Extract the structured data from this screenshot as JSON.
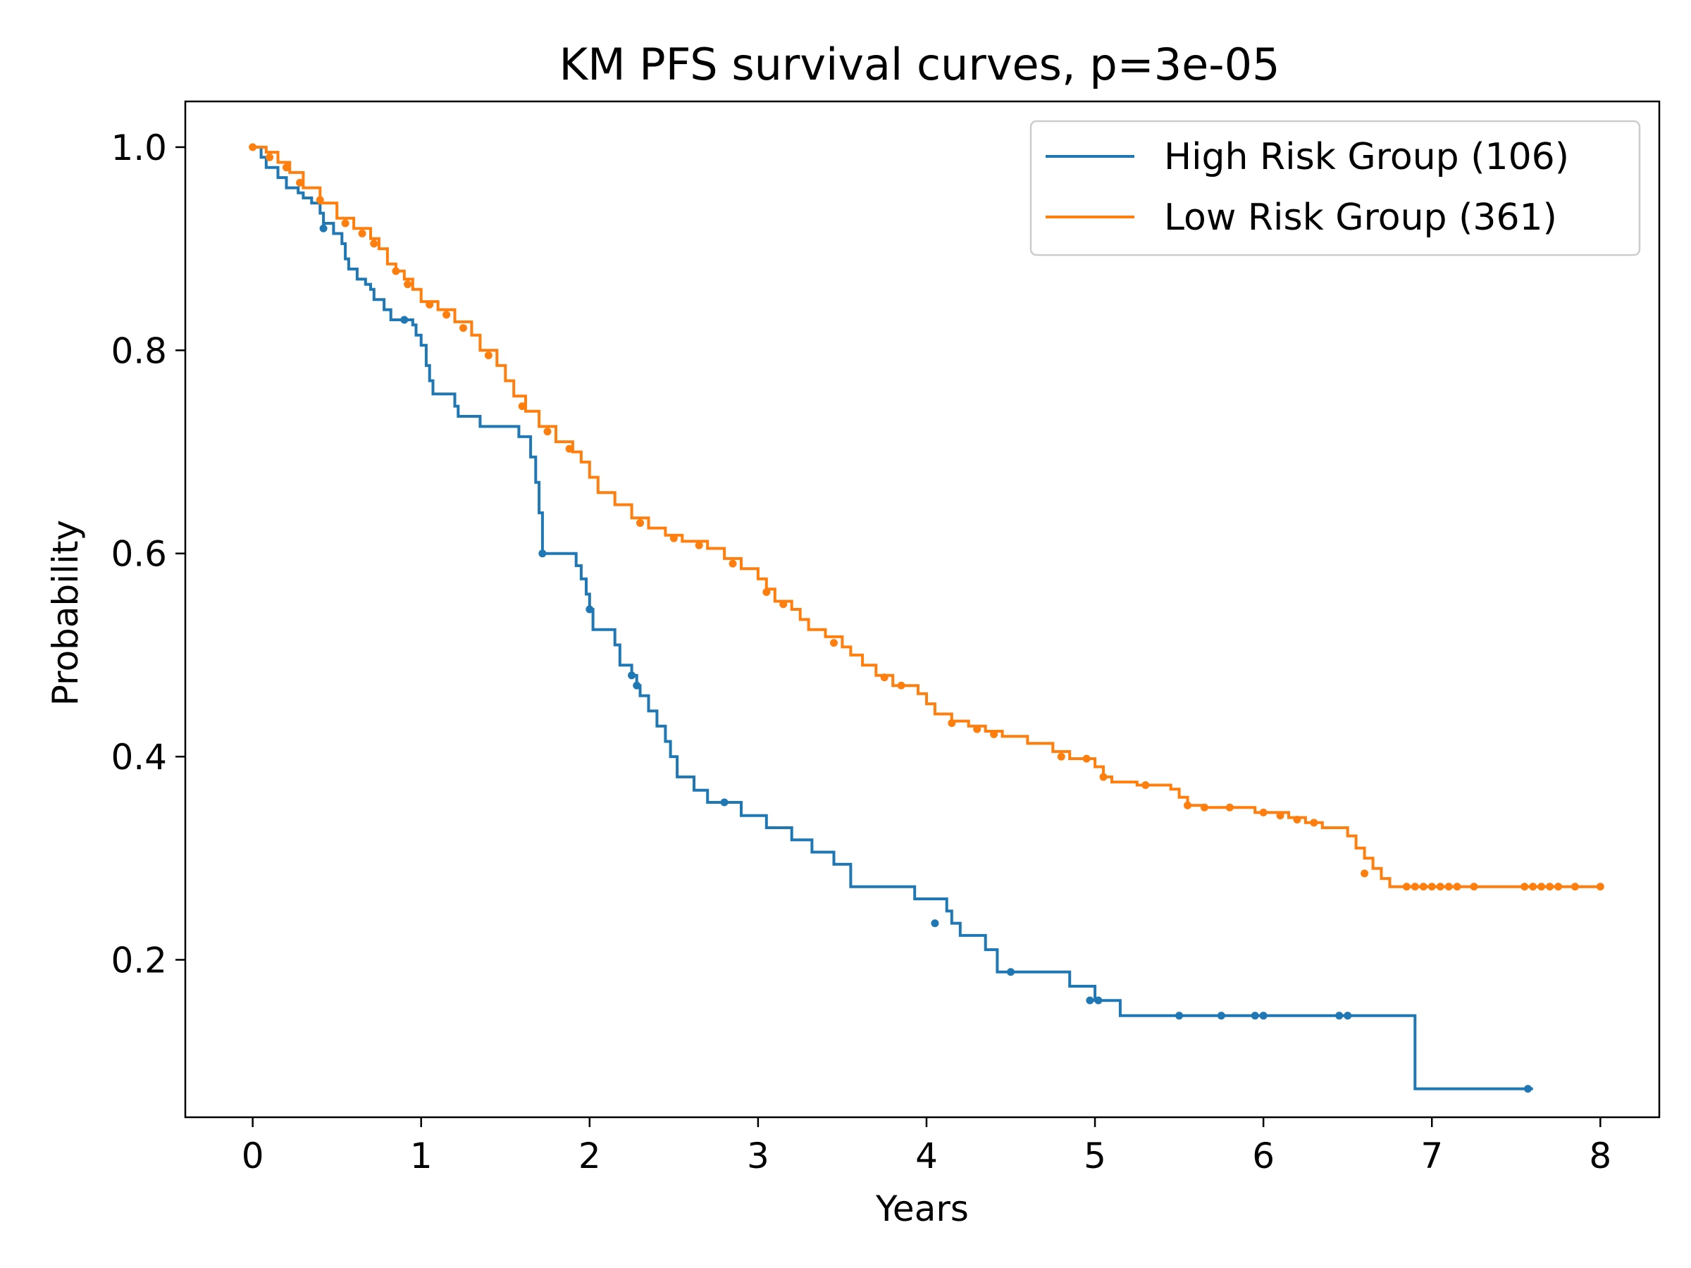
{
  "chart_data": {
    "type": "line",
    "title": "KM PFS survival curves, p=3e-05",
    "xlabel": "Years",
    "ylabel": "Probability",
    "xlim": [
      -0.4,
      8.35
    ],
    "ylim": [
      0.045,
      1.045
    ],
    "xticks": [
      0,
      1,
      2,
      3,
      4,
      5,
      6,
      7,
      8
    ],
    "xtick_labels": [
      "0",
      "1",
      "2",
      "3",
      "4",
      "5",
      "6",
      "7",
      "8"
    ],
    "yticks": [
      0.2,
      0.4,
      0.6,
      0.8,
      1.0
    ],
    "ytick_labels": [
      "0.2",
      "0.4",
      "0.6",
      "0.8",
      "1.0"
    ],
    "grid": false,
    "legend_position": "top-right",
    "series": [
      {
        "name": "High Risk Group (106)",
        "color": "#1f77b4",
        "step_points": [
          [
            0,
            1.0
          ],
          [
            0.05,
            0.99
          ],
          [
            0.08,
            0.98
          ],
          [
            0.15,
            0.97
          ],
          [
            0.2,
            0.96
          ],
          [
            0.27,
            0.955
          ],
          [
            0.3,
            0.95
          ],
          [
            0.35,
            0.945
          ],
          [
            0.4,
            0.935
          ],
          [
            0.42,
            0.925
          ],
          [
            0.48,
            0.915
          ],
          [
            0.53,
            0.905
          ],
          [
            0.55,
            0.89
          ],
          [
            0.57,
            0.88
          ],
          [
            0.62,
            0.87
          ],
          [
            0.67,
            0.865
          ],
          [
            0.7,
            0.86
          ],
          [
            0.72,
            0.85
          ],
          [
            0.78,
            0.84
          ],
          [
            0.82,
            0.83
          ],
          [
            0.95,
            0.825
          ],
          [
            0.97,
            0.815
          ],
          [
            1.0,
            0.805
          ],
          [
            1.03,
            0.785
          ],
          [
            1.05,
            0.77
          ],
          [
            1.07,
            0.757
          ],
          [
            1.2,
            0.745
          ],
          [
            1.22,
            0.735
          ],
          [
            1.35,
            0.725
          ],
          [
            1.58,
            0.715
          ],
          [
            1.65,
            0.695
          ],
          [
            1.68,
            0.67
          ],
          [
            1.7,
            0.64
          ],
          [
            1.72,
            0.6
          ],
          [
            1.92,
            0.588
          ],
          [
            1.95,
            0.575
          ],
          [
            1.98,
            0.56
          ],
          [
            2.0,
            0.545
          ],
          [
            2.02,
            0.525
          ],
          [
            2.15,
            0.51
          ],
          [
            2.18,
            0.49
          ],
          [
            2.25,
            0.48
          ],
          [
            2.28,
            0.47
          ],
          [
            2.3,
            0.46
          ],
          [
            2.35,
            0.445
          ],
          [
            2.4,
            0.43
          ],
          [
            2.45,
            0.415
          ],
          [
            2.48,
            0.4
          ],
          [
            2.52,
            0.38
          ],
          [
            2.62,
            0.367
          ],
          [
            2.7,
            0.355
          ],
          [
            2.9,
            0.342
          ],
          [
            3.05,
            0.33
          ],
          [
            3.2,
            0.318
          ],
          [
            3.32,
            0.306
          ],
          [
            3.45,
            0.294
          ],
          [
            3.55,
            0.272
          ],
          [
            3.93,
            0.26
          ],
          [
            4.12,
            0.248
          ],
          [
            4.15,
            0.236
          ],
          [
            4.2,
            0.224
          ],
          [
            4.35,
            0.21
          ],
          [
            4.42,
            0.188
          ],
          [
            4.85,
            0.174
          ],
          [
            5.0,
            0.16
          ],
          [
            5.15,
            0.145
          ],
          [
            6.9,
            0.073
          ],
          [
            7.6,
            0.073
          ]
        ],
        "censored": [
          [
            0.9,
            0.83
          ],
          [
            0.42,
            0.92
          ],
          [
            1.72,
            0.6
          ],
          [
            2.0,
            0.545
          ],
          [
            2.25,
            0.48
          ],
          [
            2.28,
            0.47
          ],
          [
            2.8,
            0.355
          ],
          [
            4.05,
            0.236
          ],
          [
            4.5,
            0.188
          ],
          [
            4.97,
            0.16
          ],
          [
            5.02,
            0.16
          ],
          [
            5.5,
            0.145
          ],
          [
            5.75,
            0.145
          ],
          [
            5.95,
            0.145
          ],
          [
            6.0,
            0.145
          ],
          [
            6.45,
            0.145
          ],
          [
            6.5,
            0.145
          ],
          [
            7.57,
            0.073
          ]
        ]
      },
      {
        "name": "Low Risk Group (361)",
        "color": "#ff7f0e",
        "step_points": [
          [
            0,
            1.0
          ],
          [
            0.08,
            0.995
          ],
          [
            0.15,
            0.985
          ],
          [
            0.22,
            0.975
          ],
          [
            0.3,
            0.96
          ],
          [
            0.4,
            0.945
          ],
          [
            0.5,
            0.93
          ],
          [
            0.6,
            0.92
          ],
          [
            0.7,
            0.91
          ],
          [
            0.75,
            0.9
          ],
          [
            0.8,
            0.885
          ],
          [
            0.85,
            0.878
          ],
          [
            0.9,
            0.87
          ],
          [
            0.95,
            0.86
          ],
          [
            1.0,
            0.848
          ],
          [
            1.1,
            0.84
          ],
          [
            1.2,
            0.828
          ],
          [
            1.3,
            0.815
          ],
          [
            1.35,
            0.8
          ],
          [
            1.45,
            0.785
          ],
          [
            1.5,
            0.77
          ],
          [
            1.55,
            0.755
          ],
          [
            1.62,
            0.74
          ],
          [
            1.7,
            0.725
          ],
          [
            1.8,
            0.71
          ],
          [
            1.9,
            0.7
          ],
          [
            1.95,
            0.69
          ],
          [
            2.0,
            0.675
          ],
          [
            2.05,
            0.66
          ],
          [
            2.15,
            0.648
          ],
          [
            2.25,
            0.635
          ],
          [
            2.35,
            0.625
          ],
          [
            2.45,
            0.618
          ],
          [
            2.55,
            0.612
          ],
          [
            2.7,
            0.605
          ],
          [
            2.8,
            0.595
          ],
          [
            2.9,
            0.585
          ],
          [
            3.0,
            0.575
          ],
          [
            3.05,
            0.565
          ],
          [
            3.1,
            0.553
          ],
          [
            3.2,
            0.545
          ],
          [
            3.25,
            0.535
          ],
          [
            3.3,
            0.525
          ],
          [
            3.4,
            0.518
          ],
          [
            3.5,
            0.508
          ],
          [
            3.55,
            0.5
          ],
          [
            3.62,
            0.49
          ],
          [
            3.7,
            0.48
          ],
          [
            3.8,
            0.47
          ],
          [
            3.95,
            0.462
          ],
          [
            4.0,
            0.452
          ],
          [
            4.05,
            0.442
          ],
          [
            4.15,
            0.435
          ],
          [
            4.25,
            0.43
          ],
          [
            4.35,
            0.425
          ],
          [
            4.45,
            0.42
          ],
          [
            4.6,
            0.413
          ],
          [
            4.75,
            0.405
          ],
          [
            4.85,
            0.398
          ],
          [
            5.0,
            0.39
          ],
          [
            5.05,
            0.38
          ],
          [
            5.1,
            0.375
          ],
          [
            5.25,
            0.372
          ],
          [
            5.45,
            0.368
          ],
          [
            5.5,
            0.36
          ],
          [
            5.55,
            0.352
          ],
          [
            5.65,
            0.35
          ],
          [
            5.95,
            0.345
          ],
          [
            6.15,
            0.34
          ],
          [
            6.25,
            0.335
          ],
          [
            6.35,
            0.33
          ],
          [
            6.5,
            0.322
          ],
          [
            6.55,
            0.31
          ],
          [
            6.6,
            0.3
          ],
          [
            6.65,
            0.29
          ],
          [
            6.7,
            0.28
          ],
          [
            6.75,
            0.272
          ],
          [
            8.0,
            0.272
          ]
        ],
        "censored": [
          [
            0.0,
            1.0
          ],
          [
            0.1,
            0.99
          ],
          [
            0.2,
            0.98
          ],
          [
            0.28,
            0.965
          ],
          [
            0.4,
            0.948
          ],
          [
            0.55,
            0.925
          ],
          [
            0.65,
            0.915
          ],
          [
            0.72,
            0.905
          ],
          [
            0.85,
            0.878
          ],
          [
            0.92,
            0.865
          ],
          [
            1.05,
            0.845
          ],
          [
            1.15,
            0.835
          ],
          [
            1.25,
            0.822
          ],
          [
            1.4,
            0.795
          ],
          [
            1.6,
            0.745
          ],
          [
            1.75,
            0.72
          ],
          [
            1.88,
            0.703
          ],
          [
            2.3,
            0.63
          ],
          [
            2.5,
            0.615
          ],
          [
            2.65,
            0.608
          ],
          [
            2.85,
            0.59
          ],
          [
            3.05,
            0.562
          ],
          [
            3.15,
            0.55
          ],
          [
            3.45,
            0.512
          ],
          [
            3.75,
            0.478
          ],
          [
            3.85,
            0.47
          ],
          [
            4.15,
            0.433
          ],
          [
            4.3,
            0.427
          ],
          [
            4.4,
            0.422
          ],
          [
            4.8,
            0.4
          ],
          [
            4.95,
            0.398
          ],
          [
            5.05,
            0.38
          ],
          [
            5.3,
            0.372
          ],
          [
            5.55,
            0.352
          ],
          [
            5.65,
            0.35
          ],
          [
            5.8,
            0.35
          ],
          [
            6.0,
            0.345
          ],
          [
            6.1,
            0.342
          ],
          [
            6.2,
            0.338
          ],
          [
            6.3,
            0.335
          ],
          [
            6.6,
            0.285
          ],
          [
            6.85,
            0.272
          ],
          [
            6.9,
            0.272
          ],
          [
            6.95,
            0.272
          ],
          [
            7.0,
            0.272
          ],
          [
            7.05,
            0.272
          ],
          [
            7.1,
            0.272
          ],
          [
            7.15,
            0.272
          ],
          [
            7.25,
            0.272
          ],
          [
            7.55,
            0.272
          ],
          [
            7.6,
            0.272
          ],
          [
            7.65,
            0.272
          ],
          [
            7.7,
            0.272
          ],
          [
            7.75,
            0.272
          ],
          [
            7.85,
            0.272
          ],
          [
            8.0,
            0.272
          ]
        ]
      }
    ]
  }
}
